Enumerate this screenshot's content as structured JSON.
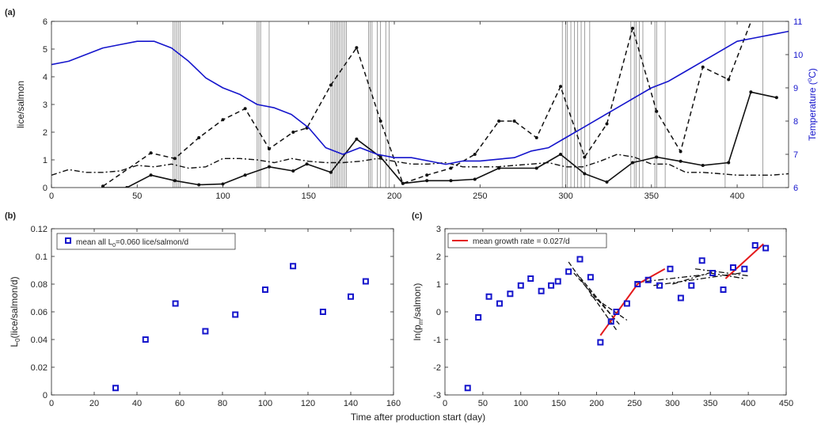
{
  "figure": {
    "xlabel_shared": "Time after production start (day)"
  },
  "colors": {
    "blue": "#1515cc",
    "black": "#111111",
    "red": "#e41a1c",
    "gray": "#777777"
  },
  "chart_data": [
    {
      "panel": "(a)",
      "type": "line",
      "xlim": [
        0,
        430
      ],
      "xticks": [
        0,
        50,
        100,
        150,
        200,
        250,
        300,
        350,
        400
      ],
      "ylim": [
        0,
        6
      ],
      "yticks": [
        0,
        1,
        2,
        3,
        4,
        5,
        6
      ],
      "ylabel": "lice/salmon",
      "y2lim": [
        6,
        11
      ],
      "y2ticks": [
        6,
        7,
        8,
        9,
        10,
        11
      ],
      "y2label_main": "Temperature (",
      "y2label_sup": "o",
      "y2label_end": "C)",
      "event_lines": [
        71,
        72,
        73,
        74,
        75,
        120,
        121,
        122,
        127,
        163,
        164,
        165,
        166,
        167,
        168,
        169,
        170,
        171,
        172,
        185,
        186,
        187,
        190,
        192,
        195,
        197,
        298,
        300,
        301,
        303,
        305,
        307,
        309,
        311,
        314,
        338,
        340,
        341,
        343,
        345,
        352,
        353,
        358,
        393,
        415
      ],
      "series": [
        {
          "style": "dashed",
          "x": [
            30,
            58,
            72,
            86,
            100,
            113,
            127,
            141,
            149,
            163,
            178,
            192,
            205,
            219,
            233,
            247,
            261,
            270,
            283,
            297,
            311,
            324,
            339,
            353,
            367,
            380,
            395,
            410
          ],
          "y": [
            0.05,
            1.25,
            1.05,
            1.8,
            2.45,
            2.85,
            1.4,
            2.0,
            2.15,
            3.7,
            5.05,
            2.4,
            0.15,
            0.45,
            0.7,
            1.2,
            2.4,
            2.4,
            1.8,
            3.65,
            1.1,
            2.3,
            5.75,
            2.75,
            1.3,
            4.35,
            3.9,
            6.3
          ]
        },
        {
          "style": "dashdot",
          "x": [
            0,
            10,
            20,
            30,
            40,
            50,
            60,
            70,
            80,
            90,
            100,
            110,
            120,
            130,
            140,
            150,
            160,
            170,
            180,
            190,
            200,
            210,
            220,
            230,
            240,
            250,
            260,
            270,
            280,
            290,
            300,
            310,
            320,
            330,
            340,
            350,
            360,
            370,
            380,
            390,
            400,
            410,
            420,
            430
          ],
          "y": [
            0.45,
            0.65,
            0.55,
            0.55,
            0.6,
            0.8,
            0.75,
            0.85,
            0.7,
            0.75,
            1.05,
            1.05,
            1.0,
            0.9,
            1.05,
            0.95,
            0.9,
            0.9,
            0.95,
            1.05,
            0.95,
            0.85,
            0.85,
            0.9,
            0.75,
            0.75,
            0.75,
            0.8,
            0.85,
            0.9,
            0.75,
            0.75,
            0.95,
            1.2,
            1.1,
            0.85,
            0.85,
            0.55,
            0.55,
            0.5,
            0.45,
            0.45,
            0.45,
            0.5
          ]
        },
        {
          "style": "solid",
          "x": [
            30,
            44,
            58,
            72,
            86,
            100,
            113,
            127,
            141,
            149,
            163,
            178,
            192,
            205,
            219,
            233,
            247,
            261,
            283,
            297,
            311,
            324,
            339,
            353,
            367,
            380,
            395,
            408,
            423
          ],
          "y": [
            0.0,
            0.0,
            0.45,
            0.25,
            0.1,
            0.13,
            0.45,
            0.75,
            0.6,
            0.85,
            0.55,
            1.75,
            1.1,
            0.15,
            0.25,
            0.25,
            0.3,
            0.7,
            0.7,
            1.2,
            0.5,
            0.2,
            0.9,
            1.1,
            0.95,
            0.8,
            0.9,
            3.45,
            3.25
          ]
        },
        {
          "style": "temperature",
          "axis": "right",
          "x": [
            0,
            10,
            20,
            30,
            40,
            50,
            60,
            70,
            80,
            90,
            100,
            110,
            120,
            130,
            140,
            150,
            160,
            170,
            180,
            190,
            200,
            210,
            220,
            230,
            240,
            250,
            260,
            270,
            280,
            290,
            300,
            310,
            320,
            330,
            340,
            350,
            360,
            370,
            380,
            390,
            400,
            410,
            420,
            430
          ],
          "y": [
            9.7,
            9.8,
            10.0,
            10.2,
            10.3,
            10.4,
            10.4,
            10.2,
            9.8,
            9.3,
            9.0,
            8.8,
            8.5,
            8.4,
            8.2,
            7.8,
            7.2,
            7.0,
            7.2,
            7.0,
            6.9,
            6.9,
            6.8,
            6.7,
            6.8,
            6.8,
            6.85,
            6.9,
            7.1,
            7.2,
            7.5,
            7.8,
            8.1,
            8.4,
            8.7,
            9.0,
            9.2,
            9.5,
            9.8,
            10.1,
            10.4,
            10.5,
            10.6,
            10.7
          ]
        }
      ]
    },
    {
      "panel": "(b)",
      "type": "scatter",
      "xlim": [
        0,
        160
      ],
      "xticks": [
        0,
        20,
        40,
        60,
        80,
        100,
        120,
        140,
        160
      ],
      "ylim": [
        0,
        0.12
      ],
      "yticks": [
        "0",
        "0.02",
        "0.04",
        "0.06",
        "0.08",
        "0.1",
        "0.12"
      ],
      "ylabel_main": "L",
      "ylabel_sub": "0",
      "ylabel_end": "(lice/salmon/d)",
      "legend_main": "mean all L",
      "legend_sub": "0",
      "legend_end": "=0.060 lice/salmon/d",
      "x": [
        30,
        44,
        58,
        72,
        86,
        100,
        113,
        127,
        140,
        147
      ],
      "y": [
        0.005,
        0.04,
        0.066,
        0.046,
        0.058,
        0.076,
        0.093,
        0.06,
        0.071,
        0.082
      ]
    },
    {
      "panel": "(c)",
      "type": "scatter",
      "xlim": [
        0,
        450
      ],
      "xticks": [
        0,
        50,
        100,
        150,
        200,
        250,
        300,
        350,
        400,
        450
      ],
      "ylim": [
        -3,
        3
      ],
      "yticks": [
        -3,
        -2,
        -1,
        0,
        1,
        2,
        3
      ],
      "ylabel_main": "ln(p",
      "ylabel_sub": "m",
      "ylabel_end": "/salmon)",
      "legend": "mean growth rate = 0.027/d",
      "x": [
        30,
        44,
        58,
        72,
        86,
        100,
        113,
        127,
        140,
        149,
        163,
        178,
        192,
        205,
        219,
        226,
        240,
        254,
        268,
        283,
        297,
        311,
        325,
        339,
        353,
        367,
        380,
        395,
        409,
        423
      ],
      "y": [
        -2.75,
        -0.2,
        0.55,
        0.3,
        0.65,
        0.95,
        1.2,
        0.75,
        0.95,
        1.1,
        1.45,
        1.9,
        1.25,
        -1.1,
        -0.35,
        0.0,
        0.3,
        1.0,
        1.15,
        0.95,
        1.55,
        0.5,
        0.95,
        1.85,
        1.4,
        0.8,
        1.6,
        1.55,
        2.4,
        2.3
      ],
      "fit_lines_red": [
        [
          [
            205,
            -0.85
          ],
          [
            254,
            1.0
          ]
        ],
        [
          [
            254,
            1.0
          ],
          [
            290,
            1.55
          ]
        ],
        [
          [
            370,
            1.2
          ],
          [
            420,
            2.45
          ]
        ]
      ],
      "fit_lines_dashed": [
        [
          [
            163,
            1.8
          ],
          [
            226,
            -0.65
          ]
        ],
        [
          [
            170,
            1.4
          ],
          [
            230,
            -0.45
          ]
        ],
        [
          [
            178,
            1.25
          ],
          [
            225,
            -0.3
          ]
        ],
        [
          [
            192,
            0.6
          ],
          [
            240,
            -0.3
          ]
        ]
      ],
      "fit_lines_dashdot": [
        [
          [
            250,
            1.05
          ],
          [
            345,
            1.35
          ]
        ],
        [
          [
            275,
            0.95
          ],
          [
            390,
            1.4
          ]
        ],
        [
          [
            300,
            1.0
          ],
          [
            360,
            1.5
          ]
        ],
        [
          [
            330,
            1.55
          ],
          [
            400,
            1.3
          ]
        ],
        [
          [
            350,
            1.4
          ],
          [
            395,
            1.2
          ]
        ]
      ]
    }
  ]
}
